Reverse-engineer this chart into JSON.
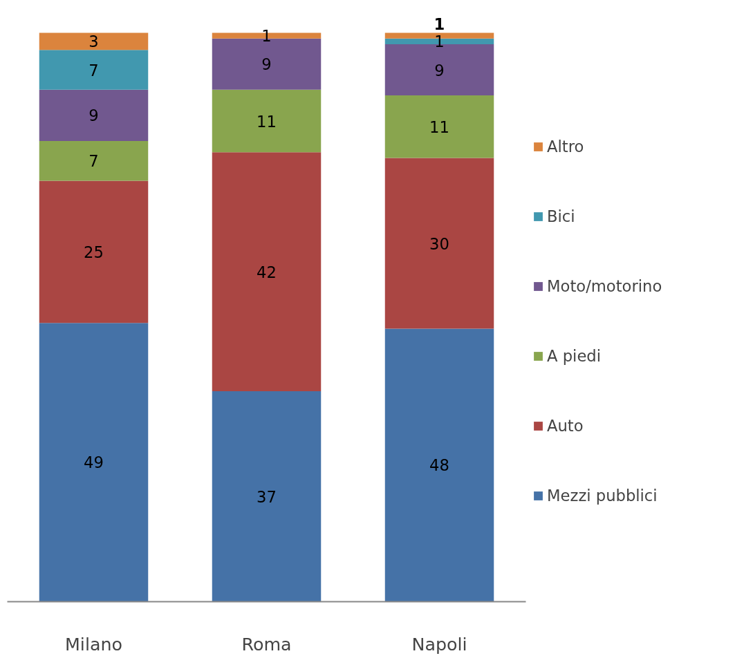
{
  "chart_data": {
    "type": "bar",
    "stacked": true,
    "categories": [
      "Milano",
      "Roma",
      "Napoli"
    ],
    "ylim": [
      0,
      100
    ],
    "tick_labels": "x",
    "legend": "right",
    "grid": false,
    "series": [
      {
        "name": "Mezzi pubblici",
        "color": "#4572a7",
        "values": [
          49,
          37,
          48
        ],
        "value_labels": [
          "49",
          "37",
          "48"
        ]
      },
      {
        "name": "Auto",
        "color": "#aa4643",
        "values": [
          25,
          42,
          30
        ],
        "value_labels": [
          "25",
          "42",
          "30"
        ]
      },
      {
        "name": "A piedi",
        "color": "#89a54e",
        "values": [
          7,
          11,
          11
        ],
        "value_labels": [
          "7",
          "11",
          "11"
        ]
      },
      {
        "name": "Moto/motorino",
        "color": "#71588f",
        "values": [
          9,
          9,
          9
        ],
        "value_labels": [
          "9",
          "9",
          "9"
        ]
      },
      {
        "name": "Bici",
        "color": "#4198af",
        "values": [
          7,
          0,
          1
        ],
        "value_labels": [
          "7",
          null,
          "1"
        ]
      },
      {
        "name": "Altro",
        "color": "#db843d",
        "values": [
          3,
          1,
          1
        ],
        "value_labels": [
          "3",
          "1",
          "1"
        ]
      }
    ]
  }
}
